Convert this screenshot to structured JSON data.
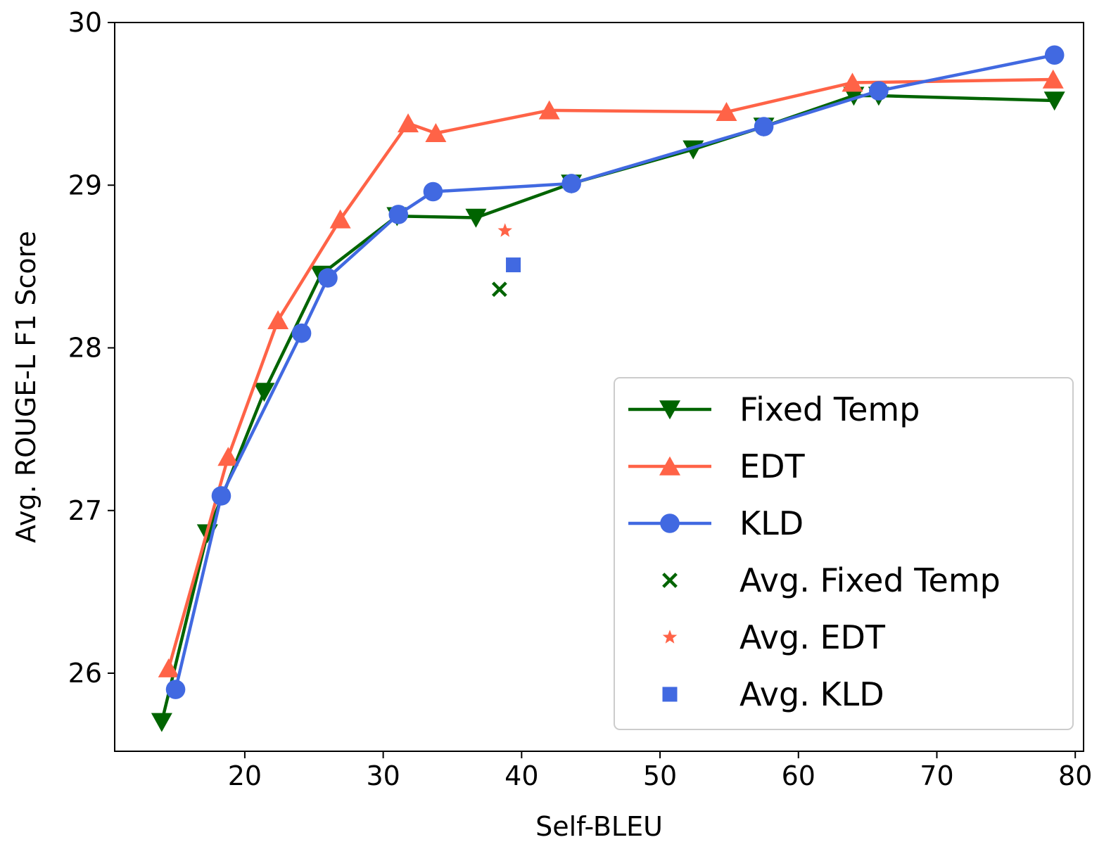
{
  "chart_data": {
    "type": "line",
    "title": "",
    "xlabel": "Self-BLEU",
    "ylabel": "Avg. ROUGE-L F1 Score",
    "xlim": [
      10.6,
      80.6
    ],
    "ylim": [
      25.52,
      30.0
    ],
    "xticks": [
      20,
      30,
      40,
      50,
      60,
      70,
      80
    ],
    "yticks": [
      26,
      27,
      28,
      29,
      30
    ],
    "grid": false,
    "legend_position": "lower-right",
    "series": [
      {
        "name": "Fixed Temp",
        "color": "#006400",
        "marker": "triangle-down",
        "line": true,
        "x": [
          14.0,
          17.3,
          21.4,
          25.5,
          31.0,
          36.7,
          43.6,
          52.4,
          57.5,
          64.0,
          65.8,
          78.5
        ],
        "y": [
          25.7,
          26.86,
          27.73,
          28.45,
          28.81,
          28.8,
          29.01,
          29.22,
          29.36,
          29.55,
          29.55,
          29.52
        ]
      },
      {
        "name": "EDT",
        "color": "#FF6347",
        "marker": "triangle-up",
        "line": true,
        "x": [
          14.5,
          18.8,
          22.4,
          26.9,
          31.8,
          33.8,
          42.0,
          54.8,
          63.9,
          78.4
        ],
        "y": [
          26.03,
          27.33,
          28.17,
          28.79,
          29.38,
          29.32,
          29.46,
          29.45,
          29.63,
          29.65
        ]
      },
      {
        "name": "KLD",
        "color": "#4169E1",
        "marker": "circle",
        "line": true,
        "x": [
          15.0,
          18.3,
          24.1,
          26.0,
          31.1,
          33.6,
          43.6,
          57.5,
          65.8,
          78.5
        ],
        "y": [
          25.9,
          27.09,
          28.09,
          28.43,
          28.82,
          28.96,
          29.01,
          29.36,
          29.58,
          29.8
        ]
      },
      {
        "name": "Avg. Fixed Temp",
        "color": "#006400",
        "marker": "x",
        "line": false,
        "x": [
          38.4
        ],
        "y": [
          28.36
        ]
      },
      {
        "name": "Avg. EDT",
        "color": "#FF6347",
        "marker": "star",
        "line": false,
        "x": [
          38.8
        ],
        "y": [
          28.72
        ]
      },
      {
        "name": "Avg. KLD",
        "color": "#4169E1",
        "marker": "square",
        "line": false,
        "x": [
          39.4
        ],
        "y": [
          28.51
        ]
      }
    ]
  }
}
